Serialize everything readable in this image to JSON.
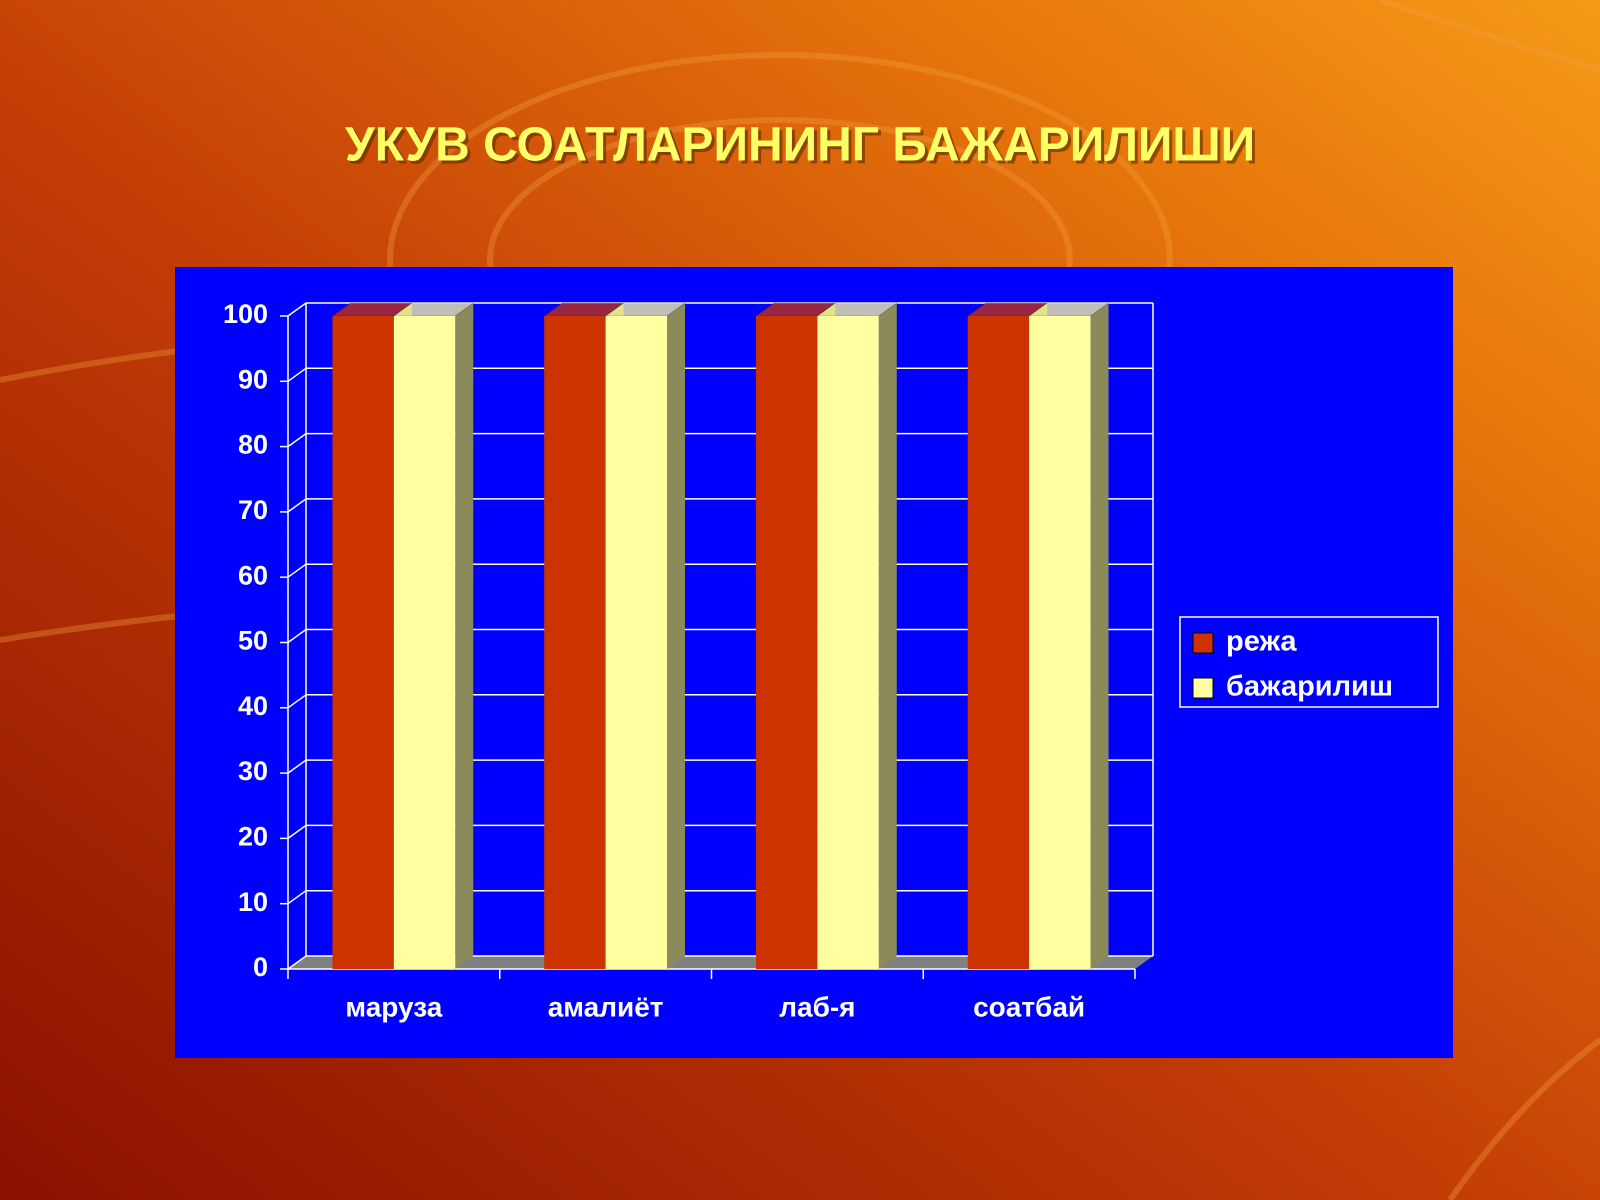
{
  "chart_data": {
    "type": "bar3d",
    "title": "УКУВ СОАТЛАРИНИНГ БАЖАРИЛИШИ",
    "categories": [
      "маруза",
      "амалиёт",
      "лаб-я",
      "соатбай"
    ],
    "series": [
      {
        "name": "режа",
        "color": "#cc3300",
        "values": [
          100,
          100,
          100,
          100
        ]
      },
      {
        "name": "бажарилиш",
        "color": "#ffffa0",
        "values": [
          100,
          100,
          100,
          100
        ]
      }
    ],
    "ylim": [
      0,
      100
    ],
    "yticks": [
      0,
      10,
      20,
      30,
      40,
      50,
      60,
      70,
      80,
      90,
      100
    ],
    "grid": true,
    "legend": "right"
  }
}
